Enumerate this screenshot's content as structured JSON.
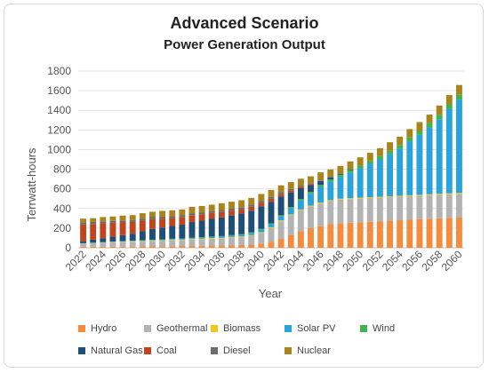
{
  "chart_data": {
    "type": "bar",
    "stacked": true,
    "title": "Advanced Scenario",
    "subtitle": "Power Generation Output",
    "xlabel": "Year",
    "ylabel": "Terrwatt-hours",
    "ylim": [
      0,
      1800
    ],
    "yticks": [
      0,
      200,
      400,
      600,
      800,
      1000,
      1200,
      1400,
      1600,
      1800
    ],
    "grid": true,
    "legend_position": "bottom",
    "categories": [
      "2022",
      "2023",
      "2024",
      "2025",
      "2026",
      "2027",
      "2028",
      "2029",
      "2030",
      "2031",
      "2032",
      "2033",
      "2034",
      "2035",
      "2036",
      "2037",
      "2038",
      "2039",
      "2040",
      "2041",
      "2042",
      "2043",
      "2044",
      "2045",
      "2046",
      "2047",
      "2048",
      "2049",
      "2050",
      "2051",
      "2052",
      "2053",
      "2054",
      "2055",
      "2056",
      "2057",
      "2058",
      "2059",
      "2060"
    ],
    "tick_labels": [
      "2022",
      "2024",
      "2026",
      "2028",
      "2030",
      "2032",
      "2034",
      "2036",
      "2038",
      "2040",
      "2042",
      "2044",
      "2046",
      "2048",
      "2050",
      "2052",
      "2054",
      "2056",
      "2058",
      "2060"
    ],
    "series": [
      {
        "name": "Hydro",
        "color": "#f58b3c",
        "values": [
          10,
          10,
          10,
          10,
          12,
          12,
          14,
          14,
          16,
          16,
          18,
          18,
          20,
          22,
          24,
          26,
          28,
          32,
          40,
          60,
          90,
          130,
          170,
          200,
          220,
          240,
          250,
          255,
          260,
          265,
          270,
          275,
          280,
          285,
          290,
          295,
          300,
          305,
          310
        ]
      },
      {
        "name": "Geothermal",
        "color": "#b3b3b3",
        "values": [
          30,
          35,
          40,
          45,
          45,
          50,
          50,
          55,
          55,
          60,
          60,
          65,
          65,
          70,
          70,
          75,
          80,
          90,
          110,
          140,
          180,
          200,
          210,
          220,
          230,
          235,
          240,
          240,
          240,
          240,
          240,
          240,
          240,
          240,
          240,
          240,
          240,
          240,
          240
        ]
      },
      {
        "name": "Biomass",
        "color": "#f5c518",
        "values": [
          3,
          3,
          3,
          4,
          4,
          4,
          5,
          5,
          5,
          6,
          6,
          6,
          7,
          7,
          7,
          8,
          8,
          8,
          9,
          9,
          9,
          10,
          10,
          10,
          10,
          10,
          10,
          10,
          10,
          10,
          10,
          10,
          10,
          10,
          10,
          10,
          10,
          10,
          10
        ]
      },
      {
        "name": "Solar PV",
        "color": "#2aa2dc",
        "values": [
          2,
          2,
          3,
          3,
          4,
          4,
          5,
          5,
          6,
          6,
          7,
          8,
          9,
          10,
          12,
          14,
          16,
          20,
          25,
          30,
          40,
          60,
          90,
          120,
          160,
          190,
          220,
          260,
          300,
          340,
          380,
          430,
          480,
          550,
          610,
          680,
          760,
          860,
          950
        ]
      },
      {
        "name": "Wind",
        "color": "#3cb54a",
        "values": [
          2,
          2,
          2,
          2,
          3,
          3,
          3,
          3,
          4,
          4,
          4,
          5,
          5,
          5,
          6,
          6,
          7,
          8,
          9,
          10,
          12,
          14,
          16,
          18,
          20,
          22,
          24,
          26,
          28,
          30,
          32,
          34,
          36,
          38,
          40,
          42,
          44,
          46,
          48
        ]
      },
      {
        "name": "Natural Gas",
        "color": "#1f4e79",
        "values": [
          20,
          30,
          40,
          50,
          60,
          70,
          90,
          110,
          120,
          130,
          140,
          160,
          170,
          180,
          190,
          200,
          210,
          220,
          230,
          220,
          190,
          150,
          110,
          70,
          40,
          20,
          10,
          5,
          0,
          0,
          0,
          0,
          0,
          0,
          0,
          0,
          0,
          0,
          0
        ]
      },
      {
        "name": "Coal",
        "color": "#c0451e",
        "values": [
          170,
          160,
          150,
          140,
          130,
          120,
          110,
          100,
          90,
          80,
          75,
          70,
          65,
          60,
          55,
          50,
          45,
          40,
          35,
          30,
          25,
          20,
          15,
          10,
          5,
          0,
          0,
          0,
          0,
          0,
          0,
          0,
          0,
          0,
          0,
          0,
          0,
          0,
          0
        ]
      },
      {
        "name": "Diesel",
        "color": "#6b6b6b",
        "values": [
          20,
          20,
          20,
          20,
          20,
          20,
          20,
          20,
          20,
          20,
          20,
          20,
          20,
          20,
          20,
          20,
          20,
          20,
          20,
          20,
          20,
          15,
          12,
          10,
          8,
          6,
          5,
          4,
          3,
          2,
          2,
          1,
          1,
          1,
          0,
          0,
          0,
          0,
          0
        ]
      },
      {
        "name": "Nuclear",
        "color": "#a8841b",
        "values": [
          40,
          40,
          45,
          45,
          50,
          50,
          55,
          55,
          60,
          60,
          60,
          65,
          65,
          65,
          70,
          70,
          70,
          70,
          70,
          70,
          70,
          70,
          70,
          70,
          75,
          75,
          75,
          80,
          80,
          80,
          80,
          85,
          85,
          85,
          90,
          90,
          95,
          95,
          100
        ]
      }
    ]
  },
  "legend": {
    "items": [
      {
        "label": "Hydro",
        "color": "#f58b3c"
      },
      {
        "label": "Geothermal",
        "color": "#b3b3b3"
      },
      {
        "label": "Biomass",
        "color": "#f5c518"
      },
      {
        "label": "Solar PV",
        "color": "#2aa2dc"
      },
      {
        "label": "Wind",
        "color": "#3cb54a"
      },
      {
        "label": "Natural Gas",
        "color": "#1f4e79"
      },
      {
        "label": "Coal",
        "color": "#c0451e"
      },
      {
        "label": "Diesel",
        "color": "#6b6b6b"
      },
      {
        "label": "Nuclear",
        "color": "#a8841b"
      }
    ]
  }
}
